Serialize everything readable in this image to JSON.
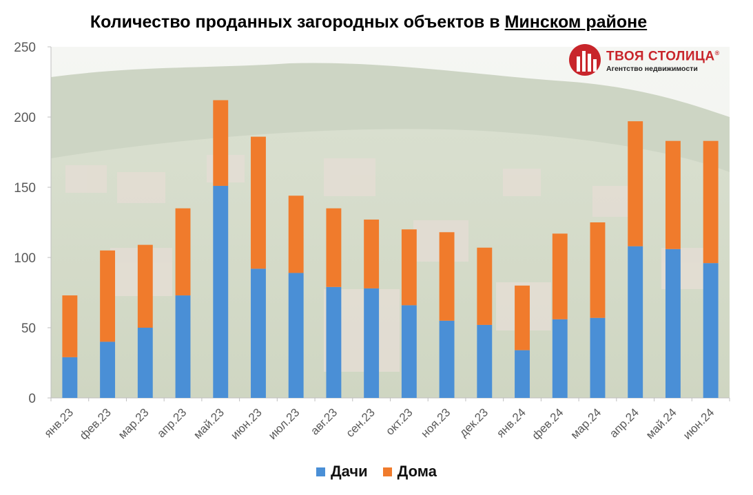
{
  "chart_data": {
    "type": "bar",
    "stacked": true,
    "title_main": "Количество проданных загородных объектов в ",
    "title_underlined": "Минском районе",
    "categories": [
      "янв.23",
      "фев.23",
      "мар.23",
      "апр.23",
      "май.23",
      "июн.23",
      "июл.23",
      "авг.23",
      "сен.23",
      "окт.23",
      "ноя.23",
      "дек.23",
      "янв.24",
      "фев.24",
      "мар.24",
      "апр.24",
      "май.24",
      "июн.24"
    ],
    "series": [
      {
        "name": "Дачи",
        "color": "#4a8fd6",
        "values": [
          29,
          40,
          50,
          73,
          151,
          92,
          89,
          79,
          78,
          66,
          55,
          52,
          34,
          56,
          57,
          108,
          106,
          96
        ]
      },
      {
        "name": "Дома",
        "color": "#f07b2c",
        "values": [
          44,
          65,
          59,
          62,
          61,
          94,
          55,
          56,
          49,
          54,
          63,
          55,
          46,
          61,
          68,
          89,
          77,
          87
        ]
      }
    ],
    "ylim": [
      0,
      250
    ],
    "yticks": [
      0,
      50,
      100,
      150,
      200,
      250
    ],
    "grid": false,
    "legend_position": "bottom-center"
  },
  "logo": {
    "name": "ТВОЯ СТОЛИЦА",
    "registered": "®",
    "tagline": "Агентство недвижимости",
    "color": "#c8252b"
  }
}
